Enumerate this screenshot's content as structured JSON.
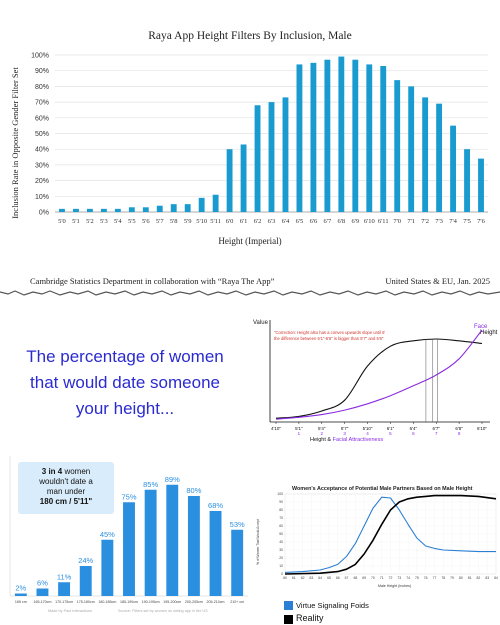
{
  "top_chart": {
    "title": "Raya App Height Filters By Inclusion, Male",
    "ylabel": "Inclusion Rate in Opposite Gender Filter Set",
    "xlabel": "Height (Imperial)",
    "footer_left": "Cambridge Statistics Department in collaboration with “Raya The App”",
    "footer_right": "United States & EU, Jan. 2025",
    "bar_color": "#1a9bd0"
  },
  "mid_left": {
    "line1": "The percentage of women",
    "line2": "that would date someone",
    "line3": "your height...",
    "color": "#2a2ad0"
  },
  "mid_right": {
    "y_label": "Value",
    "note_line1": "\"Correction: Height also has a convex upwards slope until 6'",
    "note_line2": "the difference between 6'1\"-6'6\" is bigger than 5'7\" and 5'6\"",
    "face_label": "Face",
    "height_label": "Height",
    "axis_title_a": "Height",
    "axis_title_amp": " & ",
    "axis_title_b": "Facial Attractiveness",
    "ticks_top": [
      "4'10\"",
      "5'1\"",
      "5'4\"",
      "5'7\"",
      "5'10\"",
      "6'1\"",
      "6'4\"",
      "6'7\"",
      "6'8\"",
      "6'10\""
    ],
    "ticks_bottom": [
      "1",
      "2",
      "3",
      "4",
      "5",
      "6",
      "7",
      "8"
    ],
    "height_color": "#111111",
    "face_color": "#8a2be2",
    "note_color": "#d0342c"
  },
  "bot_left": {
    "callout_bold1": "3 in 4",
    "callout_text1": " women",
    "callout_text2": "wouldn't date a",
    "callout_text3": "man under",
    "callout_bold2": "180 cm / 5'11\"",
    "footnote_left": "Made by Paul Interactions",
    "footnote_right": "Source: Filters set by women on dating app in the US",
    "bar_color": "#2b8fe0"
  },
  "bot_right": {
    "title": "Women's Acceptance of Potential Male Partners Based on Male Height",
    "ylabel": "% of Women That Would Accept",
    "xlabel": "Male Height (Inches)",
    "legend1": "Virtue Signaling Foids",
    "legend2": "Reality",
    "color1": "#2b7fd4",
    "color2": "#000000"
  },
  "chart_data": [
    {
      "type": "bar",
      "title": "Raya App Height Filters By Inclusion, Male",
      "xlabel": "Height (Imperial)",
      "ylabel": "Inclusion Rate in Opposite Gender Filter Set",
      "ylim": [
        0,
        100
      ],
      "yticks": [
        "0%",
        "10%",
        "20%",
        "30%",
        "40%",
        "50%",
        "60%",
        "70%",
        "80%",
        "90%",
        "100%"
      ],
      "grid": true,
      "categories": [
        "5'0",
        "5'1",
        "5'2",
        "5'3",
        "5'4",
        "5'5",
        "5'6",
        "5'7",
        "5'8",
        "5'9",
        "5'10",
        "5'11",
        "6'0",
        "6'1",
        "6'2",
        "6'3",
        "6'4",
        "6'5",
        "6'6",
        "6'7",
        "6'8",
        "6'9",
        "6'10",
        "6'11",
        "7'0",
        "7'1",
        "7'2",
        "7'3",
        "7'4",
        "7'5",
        "7'6"
      ],
      "values": [
        2,
        2,
        2,
        2,
        2,
        3,
        3,
        4,
        5,
        5,
        9,
        11,
        40,
        43,
        68,
        70,
        73,
        94,
        95,
        97,
        99,
        97,
        94,
        93,
        84,
        80,
        73,
        69,
        55,
        40,
        34
      ]
    },
    {
      "type": "bar",
      "categories": [
        "165 cm",
        "165-170cm",
        "170-175cm",
        "175-180cm",
        "180-185cm",
        "185-190cm",
        "190-195cm",
        "195-200cm",
        "200-205cm",
        "205-210cm",
        "210+ cm"
      ],
      "values": [
        2,
        6,
        11,
        24,
        45,
        75,
        85,
        89,
        80,
        68,
        53
      ],
      "labels": [
        "2%",
        "6%",
        "11%",
        "24%",
        "45%",
        "75%",
        "85%",
        "89%",
        "80%",
        "68%",
        "53%"
      ],
      "ylim": [
        0,
        100
      ]
    },
    {
      "type": "line",
      "title": "Women's Acceptance of Potential Male Partners Based on Male Height",
      "xlabel": "Male Height (Inches)",
      "ylabel": "% of Women That Would Accept",
      "ylim": [
        0,
        100
      ],
      "xlim": [
        60,
        84
      ],
      "yticks": [
        "0",
        "10",
        "20",
        "30",
        "40",
        "50",
        "60",
        "70",
        "80",
        "90",
        "100"
      ],
      "xticks": [
        "60",
        "61",
        "62",
        "63",
        "64",
        "65",
        "66",
        "67",
        "68",
        "69",
        "70",
        "71",
        "72",
        "73",
        "74",
        "75",
        "76",
        "77",
        "78",
        "79",
        "80",
        "81",
        "82",
        "83",
        "84"
      ],
      "series": [
        {
          "name": "Virtue Signaling Foids",
          "x": [
            60,
            62,
            64,
            65,
            66,
            67,
            68,
            69,
            70,
            71,
            72,
            73,
            74,
            75,
            76,
            77,
            78,
            80,
            82,
            84
          ],
          "values": [
            2,
            3,
            5,
            8,
            12,
            22,
            38,
            60,
            82,
            96,
            95,
            80,
            62,
            45,
            35,
            32,
            30,
            29,
            28,
            28
          ]
        },
        {
          "name": "Reality",
          "x": [
            60,
            64,
            66,
            67,
            68,
            69,
            70,
            71,
            72,
            73,
            74,
            75,
            76,
            77,
            78,
            80,
            82,
            84
          ],
          "values": [
            0,
            1,
            3,
            6,
            12,
            25,
            42,
            62,
            80,
            90,
            94,
            96,
            97,
            98,
            98,
            98,
            97,
            94
          ]
        }
      ]
    },
    {
      "type": "line",
      "xlabel": "Height & Facial Attractiveness",
      "ylabel": "Value",
      "series": [
        {
          "name": "Height",
          "x": [
            0,
            1,
            2,
            3,
            4,
            5,
            6,
            7,
            8,
            9
          ],
          "values": [
            2,
            4,
            10,
            22,
            60,
            82,
            88,
            90,
            88,
            85
          ]
        },
        {
          "name": "Face",
          "x": [
            0,
            1,
            2,
            3,
            4,
            5,
            6,
            7,
            8,
            9
          ],
          "values": [
            1,
            3,
            6,
            11,
            18,
            27,
            38,
            50,
            68,
            100
          ]
        }
      ]
    }
  ]
}
